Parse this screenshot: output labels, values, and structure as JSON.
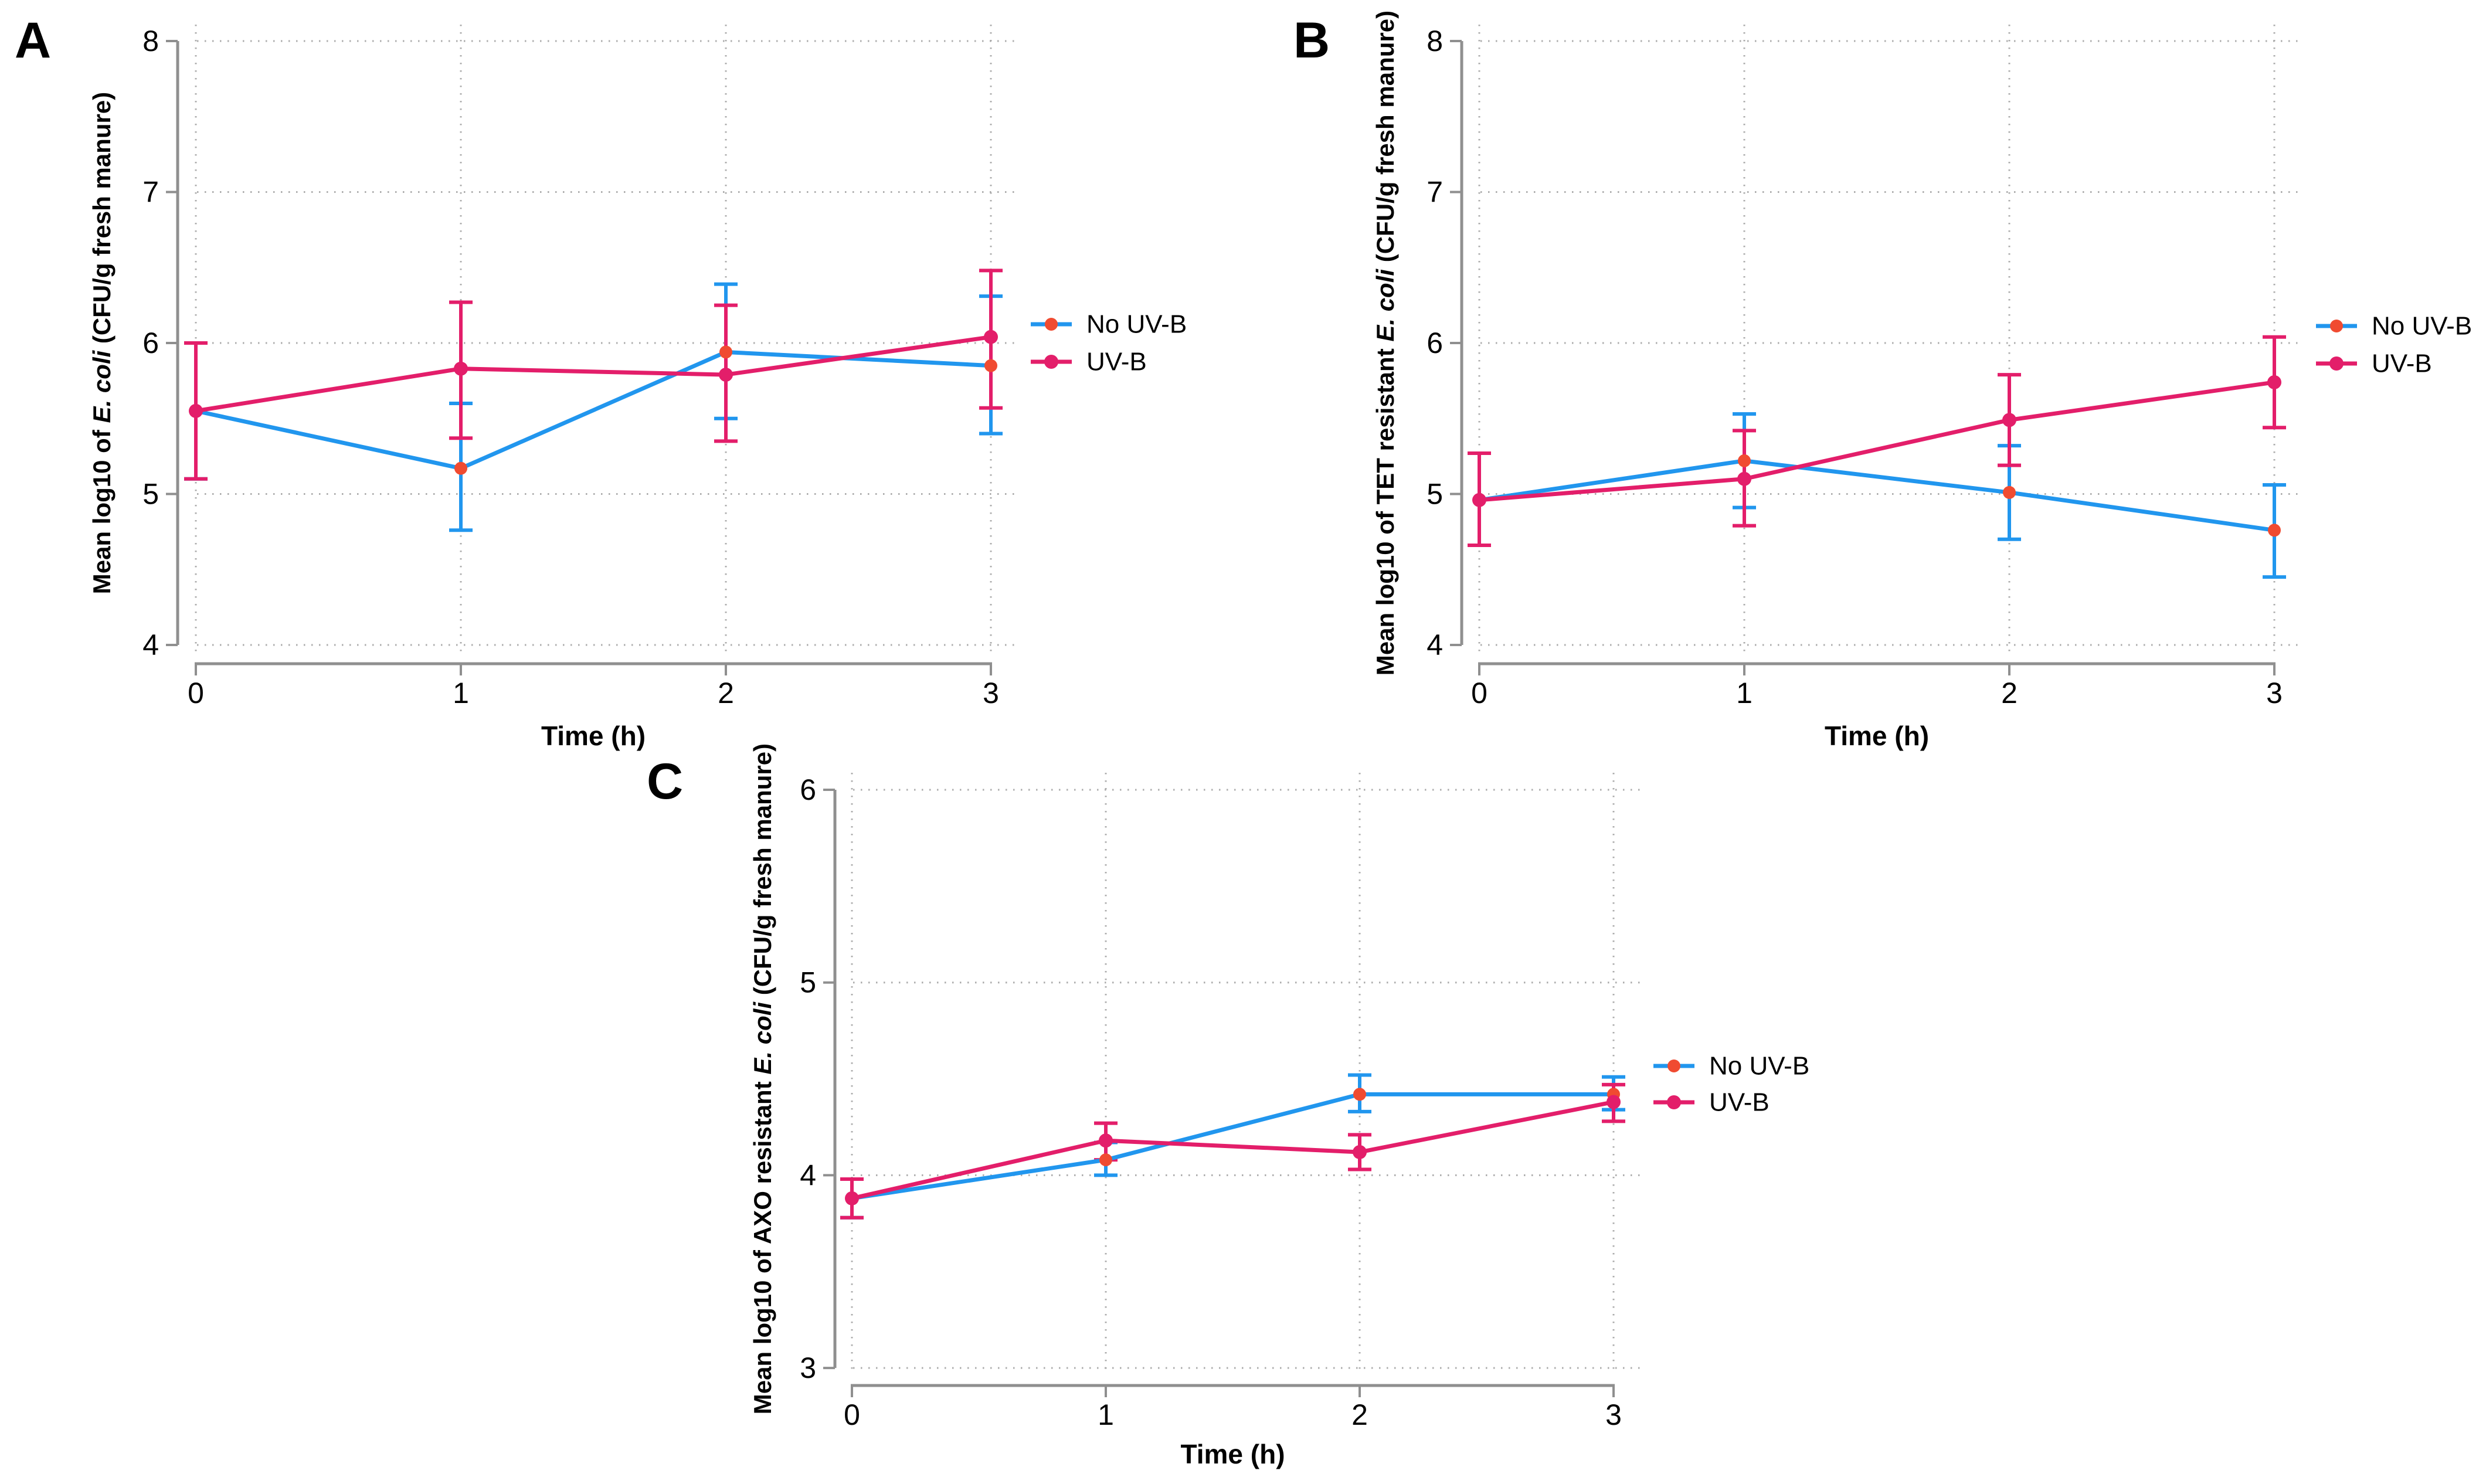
{
  "figure": {
    "background": "#ffffff",
    "xlabel": "Time (h)",
    "legend_items": [
      {
        "key": "no_uvb",
        "label": "No UV-B"
      },
      {
        "key": "uvb",
        "label": "UV-B"
      }
    ]
  },
  "colors": {
    "no_uvb_line": "#2196EE",
    "no_uvb_marker": "#F04B31",
    "uvb_line": "#E31E6A",
    "uvb_marker": "#E31E6A",
    "axis": "#8F8F8F",
    "grid": "#ACACAC",
    "text": "#000000"
  },
  "chart_data": [
    {
      "id": "A",
      "type": "line",
      "panel_label": "A",
      "ylabel_parts": [
        {
          "text": "Mean log10 of ",
          "italic": false
        },
        {
          "text": "E. coli",
          "italic": true
        },
        {
          "text": " (CFU/g fresh manure)",
          "italic": false
        }
      ],
      "xlabel": "Time (h)",
      "x": [
        0,
        1,
        2,
        3
      ],
      "xticks": [
        0,
        1,
        2,
        3
      ],
      "yticks": [
        4,
        5,
        6,
        7,
        8
      ],
      "ylim": [
        4,
        8
      ],
      "xlim": [
        0,
        3
      ],
      "grid": "dotted",
      "legend_position": "right",
      "series": [
        {
          "key": "no_uvb",
          "name": "No UV-B",
          "values": [
            5.55,
            5.17,
            5.94,
            5.85
          ],
          "ci_low": [
            5.1,
            4.76,
            5.5,
            5.4
          ],
          "ci_high": [
            6.0,
            5.6,
            6.39,
            6.31
          ]
        },
        {
          "key": "uvb",
          "name": "UV-B",
          "values": [
            5.55,
            5.83,
            5.79,
            6.04
          ],
          "ci_low": [
            5.1,
            5.37,
            5.35,
            5.57
          ],
          "ci_high": [
            6.0,
            6.27,
            6.25,
            6.48
          ]
        }
      ]
    },
    {
      "id": "B",
      "type": "line",
      "panel_label": "B",
      "ylabel_parts": [
        {
          "text": "Mean log10 of TET resistant ",
          "italic": false
        },
        {
          "text": "E. coli",
          "italic": true
        },
        {
          "text": " (CFU/g fresh manure)",
          "italic": false
        }
      ],
      "xlabel": "Time (h)",
      "x": [
        0,
        1,
        2,
        3
      ],
      "xticks": [
        0,
        1,
        2,
        3
      ],
      "yticks": [
        4,
        5,
        6,
        7,
        8
      ],
      "ylim": [
        4,
        8
      ],
      "xlim": [
        0,
        3
      ],
      "grid": "dotted",
      "legend_position": "right",
      "series": [
        {
          "key": "no_uvb",
          "name": "No UV-B",
          "values": [
            4.96,
            5.22,
            5.01,
            4.76
          ],
          "ci_low": [
            4.66,
            4.91,
            4.7,
            4.45
          ],
          "ci_high": [
            5.27,
            5.53,
            5.32,
            5.06
          ]
        },
        {
          "key": "uvb",
          "name": "UV-B",
          "values": [
            4.96,
            5.1,
            5.49,
            5.74
          ],
          "ci_low": [
            4.66,
            4.79,
            5.19,
            5.44
          ],
          "ci_high": [
            5.27,
            5.42,
            5.79,
            6.04
          ]
        }
      ]
    },
    {
      "id": "C",
      "type": "line",
      "panel_label": "C",
      "ylabel_parts": [
        {
          "text": "Mean log10 of AXO resistant ",
          "italic": false
        },
        {
          "text": "E. coli",
          "italic": true
        },
        {
          "text": " (CFU/g fresh manure)",
          "italic": false
        }
      ],
      "xlabel": "Time (h)",
      "x": [
        0,
        1,
        2,
        3
      ],
      "xticks": [
        0,
        1,
        2,
        3
      ],
      "yticks": [
        3,
        4,
        5,
        6
      ],
      "ylim": [
        3,
        6
      ],
      "xlim": [
        0,
        3
      ],
      "grid": "dotted",
      "legend_position": "right",
      "series": [
        {
          "key": "no_uvb",
          "name": "No UV-B",
          "values": [
            3.88,
            4.08,
            4.42,
            4.42
          ],
          "ci_low": [
            3.78,
            4.0,
            4.33,
            4.34
          ],
          "ci_high": [
            3.98,
            4.17,
            4.52,
            4.51
          ]
        },
        {
          "key": "uvb",
          "name": "UV-B",
          "values": [
            3.88,
            4.18,
            4.12,
            4.38
          ],
          "ci_low": [
            3.78,
            4.08,
            4.03,
            4.28
          ],
          "ci_high": [
            3.98,
            4.27,
            4.21,
            4.47
          ]
        }
      ]
    }
  ]
}
